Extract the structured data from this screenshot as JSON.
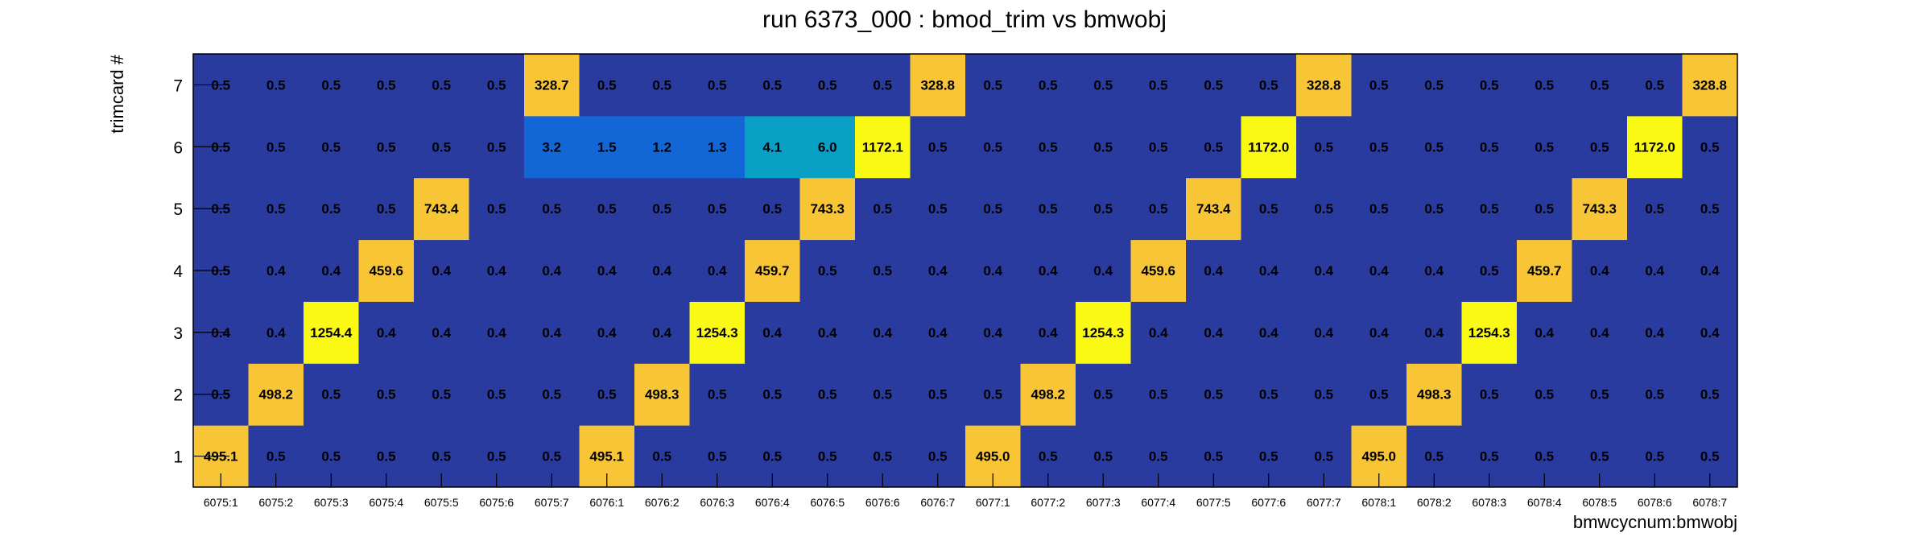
{
  "chart_data": {
    "type": "heatmap",
    "title": "run 6373_000 : bmod_trim vs bmwobj",
    "xlabel": "bmwcycnum:bmwobj",
    "ylabel": "trimcard #",
    "x_categories": [
      "6075:1",
      "6075:2",
      "6075:3",
      "6075:4",
      "6075:5",
      "6075:6",
      "6075:7",
      "6076:1",
      "6076:2",
      "6076:3",
      "6076:4",
      "6076:5",
      "6076:6",
      "6076:7",
      "6077:1",
      "6077:2",
      "6077:3",
      "6077:4",
      "6077:5",
      "6077:6",
      "6077:7",
      "6078:1",
      "6078:2",
      "6078:3",
      "6078:4",
      "6078:5",
      "6078:6",
      "6078:7"
    ],
    "y_categories": [
      "1",
      "2",
      "3",
      "4",
      "5",
      "6",
      "7"
    ],
    "values": [
      [
        "495.1",
        "0.5",
        "0.5",
        "0.5",
        "0.5",
        "0.5",
        "0.5",
        "495.1",
        "0.5",
        "0.5",
        "0.5",
        "0.5",
        "0.5",
        "0.5",
        "495.0",
        "0.5",
        "0.5",
        "0.5",
        "0.5",
        "0.5",
        "0.5",
        "495.0",
        "0.5",
        "0.5",
        "0.5",
        "0.5",
        "0.5",
        "0.5"
      ],
      [
        "0.5",
        "498.2",
        "0.5",
        "0.5",
        "0.5",
        "0.5",
        "0.5",
        "0.5",
        "498.3",
        "0.5",
        "0.5",
        "0.5",
        "0.5",
        "0.5",
        "0.5",
        "498.2",
        "0.5",
        "0.5",
        "0.5",
        "0.5",
        "0.5",
        "0.5",
        "498.3",
        "0.5",
        "0.5",
        "0.5",
        "0.5",
        "0.5"
      ],
      [
        "0.4",
        "0.4",
        "1254.4",
        "0.4",
        "0.4",
        "0.4",
        "0.4",
        "0.4",
        "0.4",
        "1254.3",
        "0.4",
        "0.4",
        "0.4",
        "0.4",
        "0.4",
        "0.4",
        "1254.3",
        "0.4",
        "0.4",
        "0.4",
        "0.4",
        "0.4",
        "0.4",
        "1254.3",
        "0.4",
        "0.4",
        "0.4",
        "0.4"
      ],
      [
        "0.5",
        "0.4",
        "0.4",
        "459.6",
        "0.4",
        "0.4",
        "0.4",
        "0.4",
        "0.4",
        "0.4",
        "459.7",
        "0.5",
        "0.5",
        "0.4",
        "0.4",
        "0.4",
        "0.4",
        "459.6",
        "0.4",
        "0.4",
        "0.4",
        "0.4",
        "0.4",
        "0.5",
        "459.7",
        "0.4",
        "0.4",
        "0.4"
      ],
      [
        "0.5",
        "0.5",
        "0.5",
        "0.5",
        "743.4",
        "0.5",
        "0.5",
        "0.5",
        "0.5",
        "0.5",
        "0.5",
        "743.3",
        "0.5",
        "0.5",
        "0.5",
        "0.5",
        "0.5",
        "0.5",
        "743.4",
        "0.5",
        "0.5",
        "0.5",
        "0.5",
        "0.5",
        "0.5",
        "743.3",
        "0.5",
        "0.5"
      ],
      [
        "0.5",
        "0.5",
        "0.5",
        "0.5",
        "0.5",
        "0.5",
        "3.2",
        "1.5",
        "1.2",
        "1.3",
        "4.1",
        "6.0",
        "1172.1",
        "0.5",
        "0.5",
        "0.5",
        "0.5",
        "0.5",
        "0.5",
        "1172.0",
        "0.5",
        "0.5",
        "0.5",
        "0.5",
        "0.5",
        "0.5",
        "1172.0",
        "0.5"
      ],
      [
        "0.5",
        "0.5",
        "0.5",
        "0.5",
        "0.5",
        "0.5",
        "328.7",
        "0.5",
        "0.5",
        "0.5",
        "0.5",
        "0.5",
        "0.5",
        "328.8",
        "0.5",
        "0.5",
        "0.5",
        "0.5",
        "0.5",
        "0.5",
        "328.8",
        "0.5",
        "0.5",
        "0.5",
        "0.5",
        "0.5",
        "0.5",
        "328.8"
      ]
    ],
    "grid": false,
    "legend": "none",
    "colors": {
      "low": "#2a3ba0",
      "mid_low": "#1366d6",
      "mid": "#0a9fc4",
      "high": "#f7c535",
      "max": "#f9f914"
    }
  }
}
